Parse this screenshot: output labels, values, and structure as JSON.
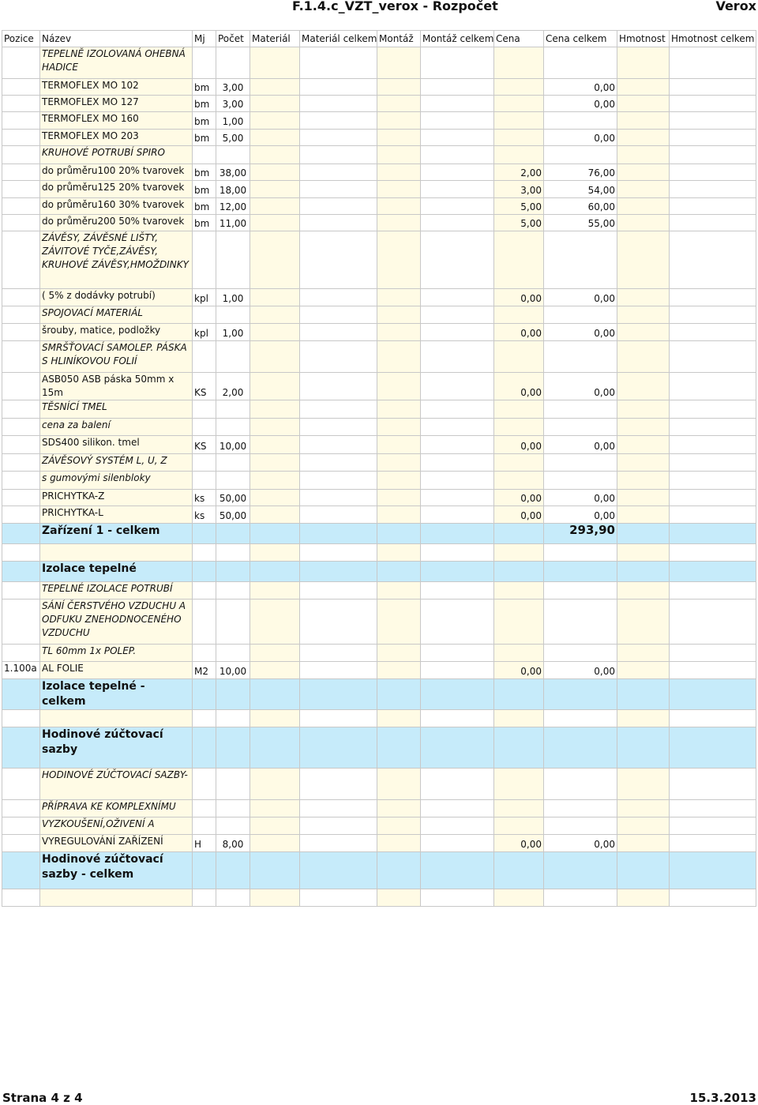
{
  "header": {
    "title": "F.1.4.c_VZT_verox - Rozpočet",
    "company": "Verox"
  },
  "footer": {
    "page": "Strana 4 z 4",
    "date": "15.3.2013"
  },
  "columns": [
    "Pozice",
    "Název",
    "Mj",
    "Počet",
    "Materiál",
    "Materiál celkem",
    "Montáž",
    "Montáž celkem",
    "Cena",
    "Cena celkem",
    "Hmotnost",
    "Hmotnost celkem"
  ],
  "rows": [
    {
      "type": "note",
      "name": "TEPELNĚ IZOLOVANÁ OHEBNÁ HADICE",
      "h": 40
    },
    {
      "type": "item",
      "name": "TERMOFLEX MO 102",
      "mj": "bm",
      "pocet": "3,00",
      "cena": "",
      "cena_celkem": "0,00",
      "h": 21
    },
    {
      "type": "item",
      "name": "TERMOFLEX MO 127",
      "mj": "bm",
      "pocet": "3,00",
      "cena": "",
      "cena_celkem": "0,00",
      "h": 21
    },
    {
      "type": "item",
      "name": "TERMOFLEX MO 160",
      "mj": "bm",
      "pocet": "1,00",
      "cena": "",
      "cena_celkem": "",
      "h": 22
    },
    {
      "type": "item",
      "name": "TERMOFLEX MO 203",
      "mj": "bm",
      "pocet": "5,00",
      "cena": "",
      "cena_celkem": "0,00",
      "h": 21
    },
    {
      "type": "note",
      "name": "KRUHOVÉ POTRUBÍ SPIRO",
      "h": 23
    },
    {
      "type": "item",
      "name": "do průměru100 20% tvarovek",
      "mj": "bm",
      "pocet": "38,00",
      "cena": "2,00",
      "cena_celkem": "76,00",
      "h": 21
    },
    {
      "type": "item",
      "name": "do průměru125 20% tvarovek",
      "mj": "bm",
      "pocet": "18,00",
      "cena": "3,00",
      "cena_celkem": "54,00",
      "h": 22
    },
    {
      "type": "item",
      "name": "do průměru160 30% tvarovek",
      "mj": "bm",
      "pocet": "12,00",
      "cena": "5,00",
      "cena_celkem": "60,00",
      "h": 21
    },
    {
      "type": "item",
      "name": "do průměru200 50% tvarovek",
      "mj": "bm",
      "pocet": "11,00",
      "cena": "5,00",
      "cena_celkem": "55,00",
      "h": 21
    },
    {
      "type": "note",
      "name": "ZÁVĚSY, ZÁVĚSNÉ LIŠTY, ZÁVITOVÉ TYČE,ZÁVĚSY, KRUHOVÉ ZÁVĚSY,HMOŽDINKY",
      "h": 73
    },
    {
      "type": "item",
      "name": "( 5% z dodávky potrubí)",
      "mj": "kpl",
      "pocet": "1,00",
      "cena": "0,00",
      "cena_celkem": "0,00",
      "h": 22
    },
    {
      "type": "note",
      "name": "SPOJOVACÍ MATERIÁL",
      "h": 22
    },
    {
      "type": "item",
      "name": "šrouby, matice, podložky",
      "mj": "kpl",
      "pocet": "1,00",
      "cena": "0,00",
      "cena_celkem": "0,00",
      "h": 22
    },
    {
      "type": "note",
      "name": "SMRŠŤOVACÍ SAMOLEP. PÁSKA S HLINÍKOVOU FOLIÍ",
      "h": 40
    },
    {
      "type": "item",
      "name": "ASB050 ASB páska 50mm x 15m",
      "mj": "KS",
      "pocet": "2,00",
      "cena": "0,00",
      "cena_celkem": "0,00",
      "h": 22
    },
    {
      "type": "note",
      "name": "TĚSNÍCÍ TMEL",
      "h": 23
    },
    {
      "type": "note",
      "name": "cena za balení",
      "h": 22
    },
    {
      "type": "item",
      "name": "SDS400 silikon. tmel",
      "mj": "KS",
      "pocet": "10,00",
      "cena": "0,00",
      "cena_celkem": "0,00",
      "h": 23
    },
    {
      "type": "note",
      "name": "ZÁVĚSOVÝ SYSTÉM L, U, Z",
      "h": 22
    },
    {
      "type": "note",
      "name": "s gumovými silenbloky",
      "h": 23
    },
    {
      "type": "item",
      "name": "PRICHYTKA-Z",
      "mj": "ks",
      "pocet": "50,00",
      "cena": "0,00",
      "cena_celkem": "0,00",
      "h": 21
    },
    {
      "type": "item",
      "name": "PRICHYTKA-L",
      "mj": "ks",
      "pocet": "50,00",
      "cena": "0,00",
      "cena_celkem": "0,00",
      "h": 22
    },
    {
      "type": "total",
      "name": "Zařízení 1 - celkem",
      "cena_celkem": "293,90",
      "h": 26
    },
    {
      "type": "blank",
      "h": 22
    },
    {
      "type": "total",
      "name": "Izolace tepelné",
      "h": 26
    },
    {
      "type": "note",
      "name": "TEPELNÉ IZOLACE POTRUBÍ",
      "h": 22
    },
    {
      "type": "note",
      "name": "SÁNÍ ČERSTVÉHO VZDUCHU A ODFUKU ZNEHODNOCENÉHO VZDUCHU",
      "h": 57
    },
    {
      "type": "note",
      "name": "TL 60mm 1x POLEP.",
      "h": 22
    },
    {
      "type": "item",
      "pozice": "1.100a",
      "name": "AL FOLIE",
      "mj": "M2",
      "pocet": "10,00",
      "cena": "0,00",
      "cena_celkem": "0,00",
      "h": 22
    },
    {
      "type": "total",
      "name": "Izolace tepelné - celkem",
      "h": 24
    },
    {
      "type": "blank",
      "h": 22
    },
    {
      "type": "total",
      "name": "Hodinové zúčtovací sazby",
      "h": 52
    },
    {
      "type": "note",
      "name": "HODINOVÉ ZÚČTOVACÍ SAZBY-",
      "h": 40
    },
    {
      "type": "note",
      "name": "PŘÍPRAVA KE KOMPLEXNÍMU",
      "h": 22
    },
    {
      "type": "note",
      "name": "VYZKOUŠENÍ,OŽIVENÍ A",
      "h": 22
    },
    {
      "type": "item",
      "name": "VYREGULOVÁNÍ ZAŘÍZENÍ",
      "mj": "H",
      "pocet": "8,00",
      "cena": "0,00",
      "cena_celkem": "0,00",
      "h": 22
    },
    {
      "type": "total",
      "name": "Hodinové zúčtovací sazby - celkem",
      "h": 47
    },
    {
      "type": "blank",
      "h": 22
    }
  ]
}
